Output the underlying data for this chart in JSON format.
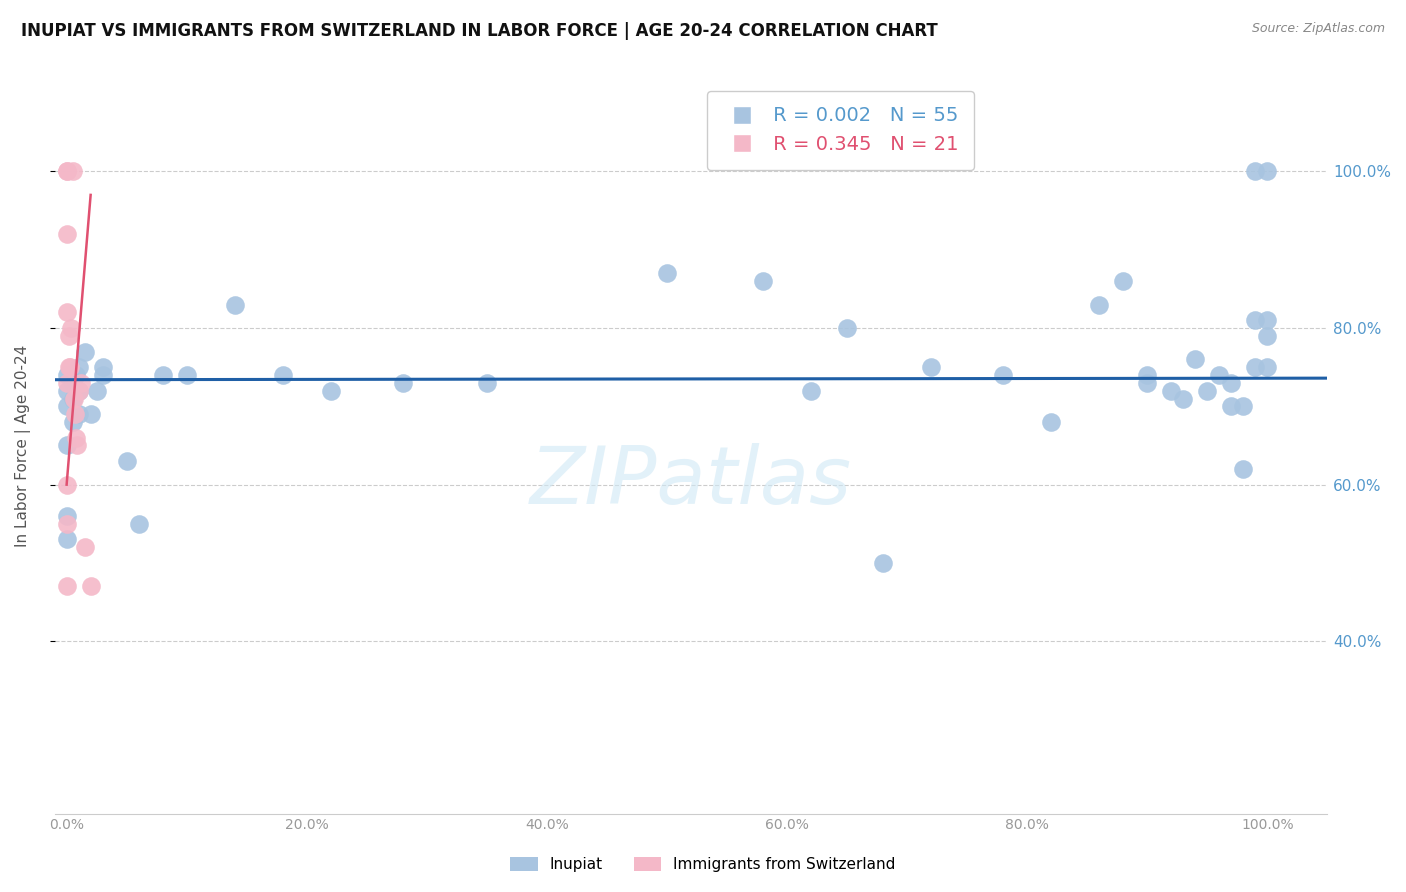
{
  "title": "INUPIAT VS IMMIGRANTS FROM SWITZERLAND IN LABOR FORCE | AGE 20-24 CORRELATION CHART",
  "source": "Source: ZipAtlas.com",
  "ylabel": "In Labor Force | Age 20-24",
  "xlim": [
    -0.01,
    1.05
  ],
  "ylim": [
    0.18,
    1.12
  ],
  "yticks": [
    0.4,
    0.6,
    0.8,
    1.0
  ],
  "xticks": [
    0.0,
    0.2,
    0.4,
    0.6,
    0.8,
    1.0
  ],
  "blue_R": "0.002",
  "blue_N": "55",
  "pink_R": "0.345",
  "pink_N": "21",
  "blue_color": "#a8c4e0",
  "pink_color": "#f4b8c8",
  "trendline_blue_color": "#1f5fa6",
  "trendline_pink_color": "#e05070",
  "right_label_color": "#5599cc",
  "watermark_color": "#d0e8f5",
  "blue_x": [
    0.0,
    0.0,
    0.0,
    0.005,
    0.005,
    0.008,
    0.01,
    0.01,
    0.015,
    0.02,
    0.025,
    0.03,
    0.05,
    0.08,
    0.14,
    0.22,
    0.28,
    0.5,
    0.58,
    0.62,
    0.65,
    0.72,
    0.78,
    0.82,
    0.86,
    0.88,
    0.9,
    0.9,
    0.92,
    0.93,
    0.94,
    0.95,
    0.96,
    0.97,
    0.97,
    0.98,
    0.98,
    0.99,
    0.99,
    0.99,
    1.0,
    1.0,
    1.0,
    1.0,
    0.0,
    0.0,
    0.0,
    0.005,
    0.01,
    0.03,
    0.06,
    0.1,
    0.18,
    0.35,
    0.68
  ],
  "blue_y": [
    0.74,
    0.72,
    0.7,
    0.73,
    0.71,
    0.74,
    0.72,
    0.69,
    0.77,
    0.69,
    0.72,
    0.74,
    0.63,
    0.74,
    0.83,
    0.72,
    0.73,
    0.87,
    0.86,
    0.72,
    0.8,
    0.75,
    0.74,
    0.68,
    0.83,
    0.86,
    0.73,
    0.74,
    0.72,
    0.71,
    0.76,
    0.72,
    0.74,
    0.73,
    0.7,
    0.62,
    0.7,
    0.75,
    0.81,
    1.0,
    0.75,
    1.0,
    0.81,
    0.79,
    0.65,
    0.56,
    0.53,
    0.68,
    0.75,
    0.75,
    0.55,
    0.74,
    0.74,
    0.73,
    0.5
  ],
  "pink_x": [
    0.0,
    0.0,
    0.0,
    0.0,
    0.0,
    0.0,
    0.0,
    0.0,
    0.002,
    0.002,
    0.003,
    0.004,
    0.005,
    0.006,
    0.007,
    0.008,
    0.009,
    0.01,
    0.012,
    0.015,
    0.02
  ],
  "pink_y": [
    1.0,
    1.0,
    0.92,
    0.82,
    0.73,
    0.6,
    0.55,
    0.47,
    0.79,
    0.75,
    0.75,
    0.8,
    1.0,
    0.71,
    0.69,
    0.66,
    0.65,
    0.72,
    0.73,
    0.52,
    0.47
  ],
  "blue_trend_x": [
    -0.01,
    1.05
  ],
  "blue_trend_y": [
    0.734,
    0.736
  ],
  "pink_trend_x": [
    0.0,
    0.02
  ],
  "pink_trend_y": [
    0.6,
    0.97
  ],
  "background_color": "#ffffff",
  "grid_color": "#cccccc",
  "axis_color": "#cccccc",
  "tick_color": "#999999"
}
